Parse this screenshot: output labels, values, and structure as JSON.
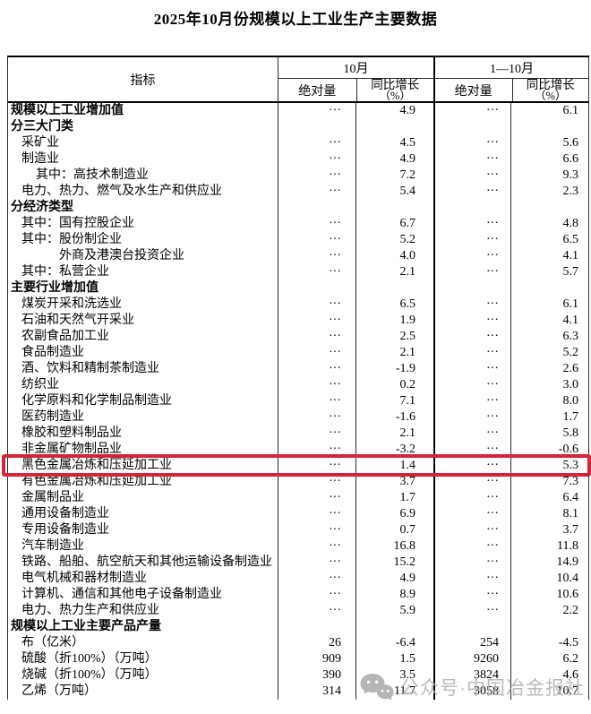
{
  "title": "2025年10月份规模以上工业生产主要数据",
  "table": {
    "header": {
      "indicator": "指标",
      "group1": "10月",
      "group2": "1—10月",
      "sub_absolute": "绝对量",
      "sub_growth_line1": "同比增长",
      "sub_growth_line2": "（%）"
    },
    "rows": [
      {
        "label": "规模以上工业增加值",
        "indent": 0,
        "bold": true,
        "oct_abs": "···",
        "oct_yoy": "4.9",
        "cum_abs": "···",
        "cum_yoy": "6.1"
      },
      {
        "label": "分三大门类",
        "indent": 0,
        "bold": true,
        "oct_abs": "",
        "oct_yoy": "",
        "cum_abs": "",
        "cum_yoy": ""
      },
      {
        "label": "采矿业",
        "indent": 1,
        "bold": false,
        "oct_abs": "···",
        "oct_yoy": "4.5",
        "cum_abs": "···",
        "cum_yoy": "5.6"
      },
      {
        "label": "制造业",
        "indent": 1,
        "bold": false,
        "oct_abs": "···",
        "oct_yoy": "4.9",
        "cum_abs": "···",
        "cum_yoy": "6.6"
      },
      {
        "label": "其中：高技术制造业",
        "indent": 2,
        "bold": false,
        "oct_abs": "···",
        "oct_yoy": "7.2",
        "cum_abs": "···",
        "cum_yoy": "9.3"
      },
      {
        "label": "电力、热力、燃气及水生产和供应业",
        "indent": 1,
        "bold": false,
        "oct_abs": "···",
        "oct_yoy": "5.4",
        "cum_abs": "···",
        "cum_yoy": "2.3"
      },
      {
        "label": "分经济类型",
        "indent": 0,
        "bold": true,
        "oct_abs": "",
        "oct_yoy": "",
        "cum_abs": "",
        "cum_yoy": ""
      },
      {
        "label": "其中：国有控股企业",
        "indent": 1,
        "bold": false,
        "oct_abs": "···",
        "oct_yoy": "6.7",
        "cum_abs": "···",
        "cum_yoy": "4.8"
      },
      {
        "label": "其中：股份制企业",
        "indent": 1,
        "bold": false,
        "oct_abs": "···",
        "oct_yoy": "5.2",
        "cum_abs": "···",
        "cum_yoy": "6.5"
      },
      {
        "label": "外商及港澳台投资企业",
        "indent": 3,
        "bold": false,
        "oct_abs": "···",
        "oct_yoy": "4.0",
        "cum_abs": "···",
        "cum_yoy": "4.1"
      },
      {
        "label": "其中：私营企业",
        "indent": 1,
        "bold": false,
        "oct_abs": "···",
        "oct_yoy": "2.1",
        "cum_abs": "···",
        "cum_yoy": "5.7"
      },
      {
        "label": "主要行业增加值",
        "indent": 0,
        "bold": true,
        "oct_abs": "",
        "oct_yoy": "",
        "cum_abs": "",
        "cum_yoy": ""
      },
      {
        "label": "煤炭开采和洗选业",
        "indent": 1,
        "bold": false,
        "oct_abs": "···",
        "oct_yoy": "6.5",
        "cum_abs": "···",
        "cum_yoy": "6.1"
      },
      {
        "label": "石油和天然气开采业",
        "indent": 1,
        "bold": false,
        "oct_abs": "···",
        "oct_yoy": "1.9",
        "cum_abs": "···",
        "cum_yoy": "4.1"
      },
      {
        "label": "农副食品加工业",
        "indent": 1,
        "bold": false,
        "oct_abs": "···",
        "oct_yoy": "2.5",
        "cum_abs": "···",
        "cum_yoy": "6.3"
      },
      {
        "label": "食品制造业",
        "indent": 1,
        "bold": false,
        "oct_abs": "···",
        "oct_yoy": "2.1",
        "cum_abs": "···",
        "cum_yoy": "5.2"
      },
      {
        "label": "酒、饮料和精制茶制造业",
        "indent": 1,
        "bold": false,
        "oct_abs": "···",
        "oct_yoy": "-1.9",
        "cum_abs": "···",
        "cum_yoy": "2.6"
      },
      {
        "label": "纺织业",
        "indent": 1,
        "bold": false,
        "oct_abs": "···",
        "oct_yoy": "0.2",
        "cum_abs": "···",
        "cum_yoy": "3.0"
      },
      {
        "label": "化学原料和化学制品制造业",
        "indent": 1,
        "bold": false,
        "oct_abs": "···",
        "oct_yoy": "7.1",
        "cum_abs": "···",
        "cum_yoy": "8.0"
      },
      {
        "label": "医药制造业",
        "indent": 1,
        "bold": false,
        "oct_abs": "···",
        "oct_yoy": "-1.6",
        "cum_abs": "···",
        "cum_yoy": "1.7"
      },
      {
        "label": "橡胶和塑料制品业",
        "indent": 1,
        "bold": false,
        "oct_abs": "···",
        "oct_yoy": "2.1",
        "cum_abs": "···",
        "cum_yoy": "5.8"
      },
      {
        "label": "非金属矿物制品业",
        "indent": 1,
        "bold": false,
        "oct_abs": "···",
        "oct_yoy": "-3.2",
        "cum_abs": "···",
        "cum_yoy": "-0.6"
      },
      {
        "label": "黑色金属冶炼和压延加工业",
        "indent": 1,
        "bold": false,
        "highlight": true,
        "oct_abs": "···",
        "oct_yoy": "1.4",
        "cum_abs": "···",
        "cum_yoy": "5.3"
      },
      {
        "label": "有色金属冶炼和压延加工业",
        "indent": 1,
        "bold": false,
        "oct_abs": "···",
        "oct_yoy": "3.7",
        "cum_abs": "···",
        "cum_yoy": "7.3"
      },
      {
        "label": "金属制品业",
        "indent": 1,
        "bold": false,
        "oct_abs": "···",
        "oct_yoy": "1.7",
        "cum_abs": "···",
        "cum_yoy": "6.4"
      },
      {
        "label": "通用设备制造业",
        "indent": 1,
        "bold": false,
        "oct_abs": "···",
        "oct_yoy": "6.9",
        "cum_abs": "···",
        "cum_yoy": "8.1"
      },
      {
        "label": "专用设备制造业",
        "indent": 1,
        "bold": false,
        "oct_abs": "···",
        "oct_yoy": "0.7",
        "cum_abs": "···",
        "cum_yoy": "3.7"
      },
      {
        "label": "汽车制造业",
        "indent": 1,
        "bold": false,
        "oct_abs": "···",
        "oct_yoy": "16.8",
        "cum_abs": "···",
        "cum_yoy": "11.8"
      },
      {
        "label": "铁路、船舶、航空航天和其他运输设备制造业",
        "indent": 1,
        "bold": false,
        "oct_abs": "···",
        "oct_yoy": "15.2",
        "cum_abs": "···",
        "cum_yoy": "14.9"
      },
      {
        "label": "电气机械和器材制造业",
        "indent": 1,
        "bold": false,
        "oct_abs": "···",
        "oct_yoy": "4.9",
        "cum_abs": "···",
        "cum_yoy": "10.4"
      },
      {
        "label": "计算机、通信和其他电子设备制造业",
        "indent": 1,
        "bold": false,
        "oct_abs": "···",
        "oct_yoy": "8.9",
        "cum_abs": "···",
        "cum_yoy": "10.6"
      },
      {
        "label": "电力、热力生产和供应业",
        "indent": 1,
        "bold": false,
        "oct_abs": "···",
        "oct_yoy": "5.9",
        "cum_abs": "···",
        "cum_yoy": "2.2"
      },
      {
        "label": "规模以上工业主要产品产量",
        "indent": 0,
        "bold": true,
        "oct_abs": "",
        "oct_yoy": "",
        "cum_abs": "",
        "cum_yoy": ""
      },
      {
        "label": "布（亿米）",
        "indent": 1,
        "bold": false,
        "oct_abs": "26",
        "oct_yoy": "-6.4",
        "cum_abs": "254",
        "cum_yoy": "-4.5"
      },
      {
        "label": "硫酸（折100%）（万吨）",
        "indent": 1,
        "bold": false,
        "oct_abs": "909",
        "oct_yoy": "1.5",
        "cum_abs": "9260",
        "cum_yoy": "6.2"
      },
      {
        "label": "烧碱（折100%）（万吨）",
        "indent": 1,
        "bold": false,
        "oct_abs": "390",
        "oct_yoy": "3.5",
        "cum_abs": "3824",
        "cum_yoy": "4.6"
      },
      {
        "label": "乙烯（万吨）",
        "indent": 1,
        "bold": false,
        "oct_abs": "314",
        "oct_yoy": "11.7",
        "cum_abs": "3058",
        "cum_yoy": "10.7"
      }
    ]
  },
  "highlight": {
    "row_label": "黑色金属冶炼和压延加工业",
    "color": "#d5243a"
  },
  "watermark": {
    "icon": "wechat-icon",
    "text": "公众号·中国冶金报社",
    "color": "#b4b4b4"
  }
}
